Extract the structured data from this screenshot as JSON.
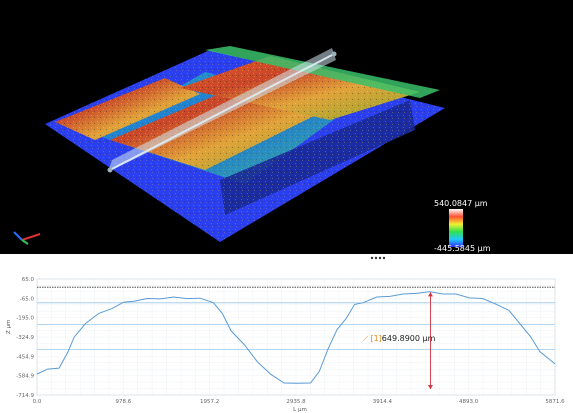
{
  "viewer": {
    "colorbar": {
      "max_label": "540.0847 µm",
      "min_label": "-445.5845 µm"
    }
  },
  "profile": {
    "x_unit_label": "L µm",
    "y_unit_label": "Z µm",
    "measurement": {
      "index": "[1]",
      "value": "649.8900 µm"
    }
  },
  "chart_data": {
    "type": "line",
    "xlabel": "L µm",
    "ylabel": "Z µm",
    "x_ticks": [
      "0.0",
      "978.6",
      "1957.2",
      "2935.8",
      "3914.4",
      "4893.0",
      "5871.6"
    ],
    "y_ticks": [
      "65.0",
      "-65.0",
      "-195.0",
      "-324.9",
      "-454.9",
      "-584.9",
      "-714.9"
    ],
    "xlim": [
      0,
      5871.6
    ],
    "ylim": [
      -714.9,
      65.0
    ],
    "series": [
      {
        "x": [
          0,
          120,
          250,
          350,
          380,
          420,
          550,
          700,
          850,
          980,
          1100,
          1250,
          1400,
          1550,
          1700,
          1850,
          2000,
          2100,
          2200,
          2350,
          2500,
          2650,
          2800,
          2950,
          3100,
          3200,
          3300,
          3400,
          3500,
          3600,
          3700,
          3850,
          4000,
          4150,
          4300,
          4450,
          4600,
          4750,
          4900,
          5050,
          5200,
          5350,
          5500,
          5600,
          5700,
          5871.6
        ],
        "y": [
          -570,
          -545,
          -530,
          -430,
          -380,
          -330,
          -230,
          -170,
          -130,
          -95,
          -80,
          -70,
          -65,
          -60,
          -63,
          -68,
          -90,
          -170,
          -280,
          -380,
          -490,
          -580,
          -630,
          -640,
          -630,
          -560,
          -400,
          -280,
          -200,
          -110,
          -90,
          -60,
          -48,
          -40,
          -28,
          -24,
          -32,
          -40,
          -58,
          -70,
          -100,
          -150,
          -250,
          -330,
          -420,
          -510
        ]
      }
    ],
    "threshold_lines_y": [
      10,
      -95,
      -240,
      -410
    ],
    "markers": [
      {
        "type": "arrow",
        "x": 4460,
        "y_top": -25,
        "y_bottom": -675
      }
    ],
    "grid": true
  }
}
